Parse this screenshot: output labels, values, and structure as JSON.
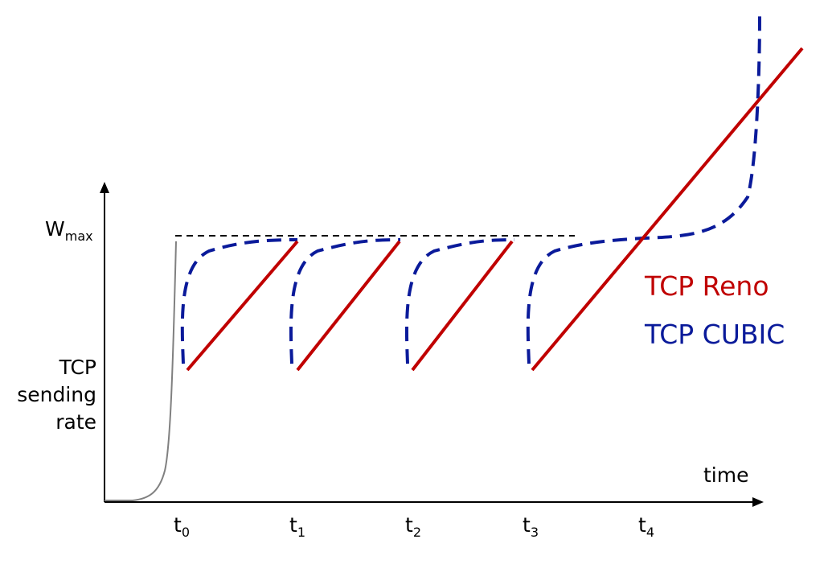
{
  "diagram": {
    "y_axis": {
      "label_lines": [
        "TCP",
        "sending",
        "rate"
      ],
      "wmax_label": {
        "base": "W",
        "sub": "max"
      }
    },
    "x_axis": {
      "label": "time",
      "ticks": [
        {
          "base": "t",
          "sub": "0"
        },
        {
          "base": "t",
          "sub": "1"
        },
        {
          "base": "t",
          "sub": "2"
        },
        {
          "base": "t",
          "sub": "3"
        },
        {
          "base": "t",
          "sub": "4"
        }
      ]
    },
    "legend": [
      {
        "label": "TCP Reno",
        "color": "#c00000",
        "style": "solid"
      },
      {
        "label": "TCP CUBIC",
        "color": "#0a1a9a",
        "style": "dashed"
      }
    ],
    "colors": {
      "axis": "#000000",
      "slow_start": "#808080",
      "wmax_line": "#000000",
      "reno": "#c00000",
      "cubic": "#0a1a9a"
    }
  }
}
